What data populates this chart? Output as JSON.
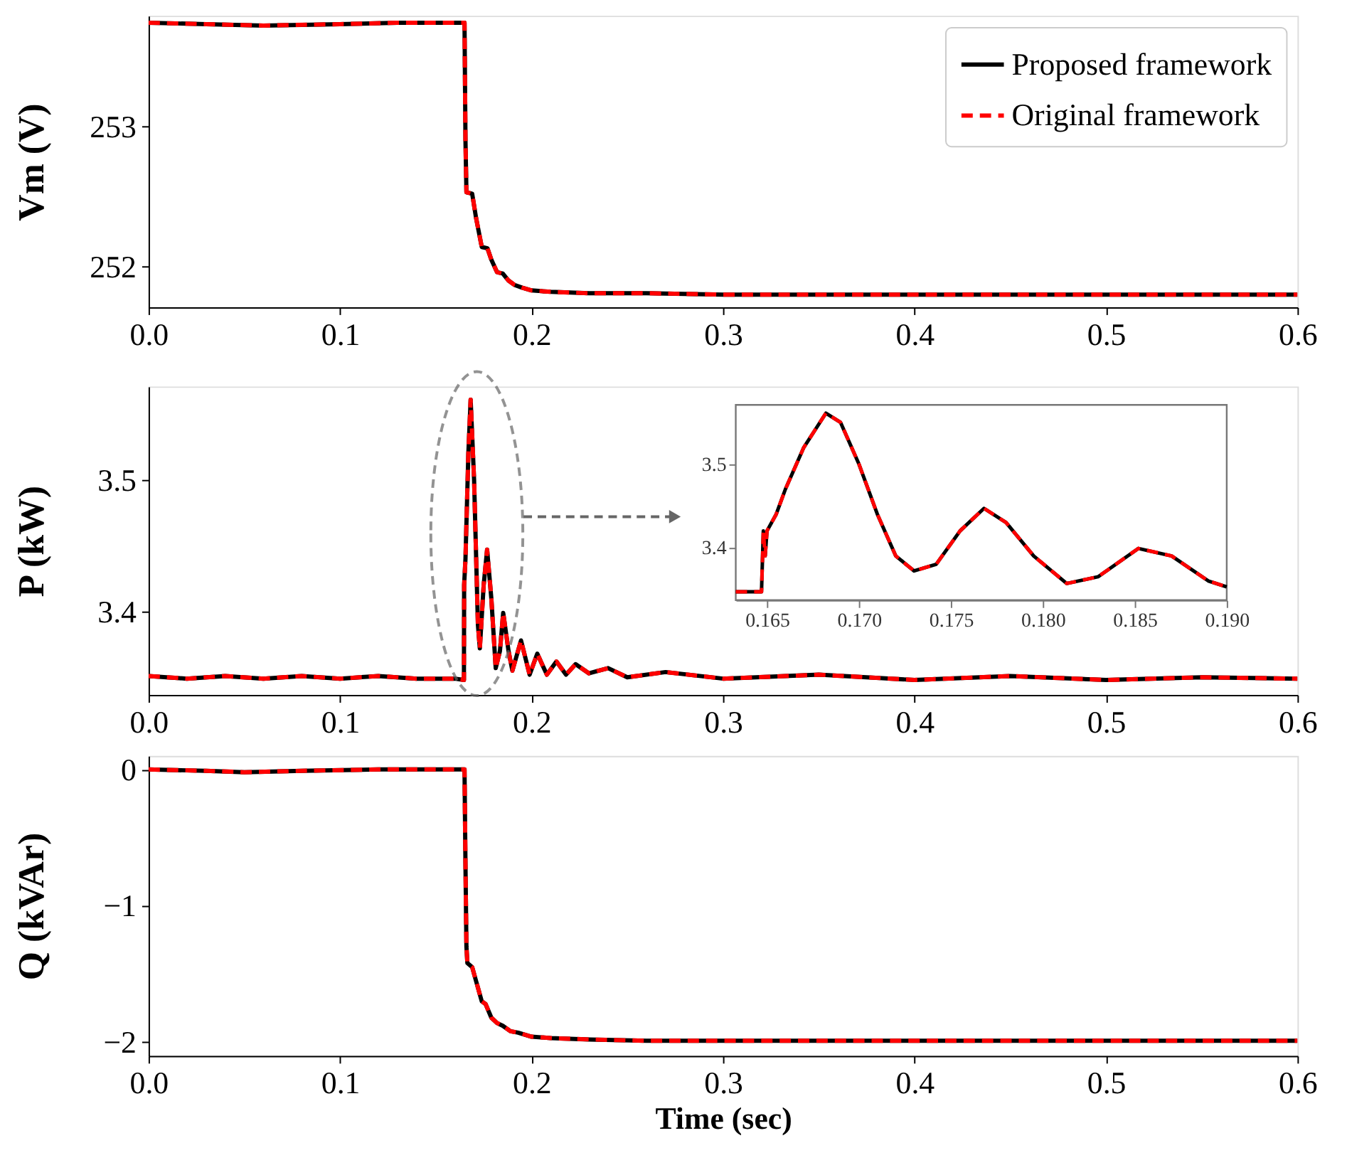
{
  "chart_data": [
    {
      "type": "line",
      "ylabel": "Vm (V)",
      "xlim": [
        0,
        0.6
      ],
      "xticks": [
        {
          "value": 0,
          "label": "0.0"
        },
        0.1,
        0.2,
        0.3,
        0.4,
        0.5,
        0.6
      ],
      "ylim": [
        251.71,
        253.79
      ],
      "yticks": [
        252,
        253
      ],
      "grid": false,
      "legend": "top right",
      "series": [
        {
          "name": "Proposed framework",
          "color": "#000000",
          "line_style": "solid",
          "x": [
            0,
            0.03,
            0.06,
            0.1,
            0.13,
            0.165,
            0.1655,
            0.166,
            0.169,
            0.171,
            0.174,
            0.177,
            0.179,
            0.182,
            0.185,
            0.188,
            0.191,
            0.195,
            0.2,
            0.21,
            0.23,
            0.26,
            0.3,
            0.35,
            0.4,
            0.45,
            0.5,
            0.55,
            0.6
          ],
          "values": [
            253.74,
            253.73,
            253.72,
            253.73,
            253.74,
            253.74,
            252.9,
            252.53,
            252.52,
            252.35,
            252.14,
            252.13,
            252.05,
            251.96,
            251.95,
            251.9,
            251.87,
            251.85,
            251.83,
            251.82,
            251.81,
            251.81,
            251.8,
            251.8,
            251.8,
            251.8,
            251.8,
            251.8,
            251.8
          ]
        },
        {
          "name": "Original framework",
          "color": "#ff0000",
          "line_style": "dashed",
          "x": [
            0,
            0.03,
            0.06,
            0.1,
            0.13,
            0.165,
            0.1655,
            0.166,
            0.169,
            0.171,
            0.174,
            0.177,
            0.179,
            0.182,
            0.185,
            0.188,
            0.191,
            0.195,
            0.2,
            0.21,
            0.23,
            0.26,
            0.3,
            0.35,
            0.4,
            0.45,
            0.5,
            0.55,
            0.6
          ],
          "values": [
            253.74,
            253.73,
            253.72,
            253.73,
            253.74,
            253.74,
            252.9,
            252.53,
            252.52,
            252.35,
            252.14,
            252.13,
            252.05,
            251.96,
            251.95,
            251.9,
            251.87,
            251.85,
            251.83,
            251.82,
            251.81,
            251.81,
            251.8,
            251.8,
            251.8,
            251.8,
            251.8,
            251.8,
            251.8
          ]
        }
      ]
    },
    {
      "type": "line",
      "ylabel": "P (kW)",
      "xlim": [
        0,
        0.6
      ],
      "xticks": [
        {
          "value": 0,
          "label": "0.0"
        },
        0.1,
        0.2,
        0.3,
        0.4,
        0.5,
        0.6
      ],
      "ylim": [
        3.3366,
        3.571
      ],
      "yticks": [
        3.4,
        3.5
      ],
      "grid": false,
      "legend": false,
      "series": [
        {
          "color": "#000000",
          "line_style": "solid",
          "x": [
            0,
            0.02,
            0.04,
            0.06,
            0.08,
            0.1,
            0.12,
            0.14,
            0.16,
            0.1647,
            0.1648,
            0.1655,
            0.167,
            0.1682,
            0.17,
            0.172,
            0.173,
            0.175,
            0.1768,
            0.179,
            0.1813,
            0.1835,
            0.1852,
            0.188,
            0.19,
            0.1945,
            0.199,
            0.203,
            0.208,
            0.213,
            0.218,
            0.223,
            0.23,
            0.24,
            0.25,
            0.27,
            0.3,
            0.35,
            0.4,
            0.45,
            0.5,
            0.55,
            0.6
          ],
          "values": [
            3.351,
            3.349,
            3.351,
            3.349,
            3.351,
            3.349,
            3.351,
            3.349,
            3.349,
            3.348,
            3.42,
            3.44,
            3.52,
            3.561,
            3.5,
            3.39,
            3.372,
            3.42,
            3.447,
            3.41,
            3.357,
            3.37,
            3.399,
            3.37,
            3.355,
            3.378,
            3.352,
            3.368,
            3.352,
            3.362,
            3.352,
            3.36,
            3.353,
            3.357,
            3.35,
            3.354,
            3.349,
            3.352,
            3.348,
            3.351,
            3.348,
            3.35,
            3.349
          ]
        },
        {
          "color": "#ff0000",
          "line_style": "dashed",
          "x": [
            0,
            0.02,
            0.04,
            0.06,
            0.08,
            0.1,
            0.12,
            0.14,
            0.16,
            0.1647,
            0.1648,
            0.1655,
            0.167,
            0.1682,
            0.17,
            0.172,
            0.173,
            0.175,
            0.1768,
            0.179,
            0.1813,
            0.1835,
            0.1852,
            0.188,
            0.19,
            0.1945,
            0.199,
            0.203,
            0.208,
            0.213,
            0.218,
            0.223,
            0.23,
            0.24,
            0.25,
            0.27,
            0.3,
            0.35,
            0.4,
            0.45,
            0.5,
            0.55,
            0.6
          ],
          "values": [
            3.351,
            3.349,
            3.351,
            3.349,
            3.351,
            3.349,
            3.351,
            3.349,
            3.349,
            3.348,
            3.42,
            3.44,
            3.52,
            3.561,
            3.5,
            3.39,
            3.372,
            3.42,
            3.447,
            3.41,
            3.357,
            3.37,
            3.399,
            3.37,
            3.355,
            3.378,
            3.352,
            3.368,
            3.352,
            3.362,
            3.352,
            3.36,
            3.353,
            3.357,
            3.35,
            3.354,
            3.349,
            3.352,
            3.348,
            3.351,
            3.348,
            3.35,
            3.349
          ]
        }
      ]
    },
    {
      "type": "line",
      "xlim": [
        0.1633,
        0.19
      ],
      "xticks": [
        0.165,
        {
          "value": 0.17,
          "label": "0.170"
        },
        0.175,
        {
          "value": 0.18,
          "label": "0.180"
        },
        0.185,
        {
          "value": 0.19,
          "label": "0.190"
        }
      ],
      "ylim": [
        3.337,
        3.571
      ],
      "yticks": [
        3.4,
        3.5
      ],
      "grid": false,
      "legend": false,
      "series": [
        {
          "color": "#000000",
          "line_style": "solid",
          "x": [
            0.1633,
            0.1647,
            0.1648,
            0.1649,
            0.165,
            0.1655,
            0.166,
            0.167,
            0.1682,
            0.169,
            0.17,
            0.171,
            0.172,
            0.173,
            0.1742,
            0.1755,
            0.1768,
            0.178,
            0.1795,
            0.1813,
            0.183,
            0.1852,
            0.187,
            0.189,
            0.19
          ],
          "values": [
            3.347,
            3.347,
            3.42,
            3.39,
            3.42,
            3.44,
            3.47,
            3.52,
            3.561,
            3.55,
            3.5,
            3.44,
            3.39,
            3.372,
            3.38,
            3.42,
            3.447,
            3.43,
            3.39,
            3.357,
            3.365,
            3.399,
            3.39,
            3.36,
            3.353
          ]
        },
        {
          "color": "#ff0000",
          "line_style": "dashed",
          "x": [
            0.1633,
            0.1647,
            0.1648,
            0.1649,
            0.165,
            0.1655,
            0.166,
            0.167,
            0.1682,
            0.169,
            0.17,
            0.171,
            0.172,
            0.173,
            0.1742,
            0.1755,
            0.1768,
            0.178,
            0.1795,
            0.1813,
            0.183,
            0.1852,
            0.187,
            0.189,
            0.19
          ],
          "values": [
            3.347,
            3.347,
            3.42,
            3.39,
            3.42,
            3.44,
            3.47,
            3.52,
            3.561,
            3.55,
            3.5,
            3.44,
            3.39,
            3.372,
            3.38,
            3.42,
            3.447,
            3.43,
            3.39,
            3.357,
            3.365,
            3.399,
            3.39,
            3.36,
            3.353
          ]
        }
      ]
    },
    {
      "type": "line",
      "ylabel": "Q (kVAr)",
      "xlabel": "Time (sec)",
      "xlim": [
        0,
        0.6
      ],
      "xticks": [
        {
          "value": 0,
          "label": "0.0"
        },
        0.1,
        0.2,
        0.3,
        0.4,
        0.5,
        0.6
      ],
      "ylim": [
        -2.1,
        0.1
      ],
      "yticks": [
        -2,
        -1,
        0
      ],
      "grid": false,
      "legend": false,
      "series": [
        {
          "color": "#000000",
          "line_style": "solid",
          "x": [
            0,
            0.03,
            0.05,
            0.08,
            0.12,
            0.16,
            0.165,
            0.1655,
            0.166,
            0.1665,
            0.169,
            0.171,
            0.174,
            0.176,
            0.179,
            0.182,
            0.185,
            0.189,
            0.193,
            0.2,
            0.21,
            0.23,
            0.26,
            0.3,
            0.4,
            0.5,
            0.6
          ],
          "values": [
            0,
            -0.01,
            -0.02,
            -0.01,
            0,
            0,
            0,
            -0.7,
            -1.3,
            -1.42,
            -1.45,
            -1.55,
            -1.7,
            -1.72,
            -1.82,
            -1.86,
            -1.88,
            -1.92,
            -1.93,
            -1.96,
            -1.97,
            -1.98,
            -1.99,
            -1.99,
            -1.99,
            -1.99,
            -1.99
          ]
        },
        {
          "color": "#ff0000",
          "line_style": "dashed",
          "x": [
            0,
            0.03,
            0.05,
            0.08,
            0.12,
            0.16,
            0.165,
            0.1655,
            0.166,
            0.1665,
            0.169,
            0.171,
            0.174,
            0.176,
            0.179,
            0.182,
            0.185,
            0.189,
            0.193,
            0.2,
            0.21,
            0.23,
            0.26,
            0.3,
            0.4,
            0.5,
            0.6
          ],
          "values": [
            0,
            -0.01,
            -0.02,
            -0.01,
            0,
            0,
            0,
            -0.7,
            -1.3,
            -1.42,
            -1.45,
            -1.55,
            -1.7,
            -1.72,
            -1.82,
            -1.86,
            -1.88,
            -1.92,
            -1.93,
            -1.96,
            -1.97,
            -1.98,
            -1.99,
            -1.99,
            -1.99,
            -1.99,
            -1.99
          ]
        }
      ]
    }
  ]
}
